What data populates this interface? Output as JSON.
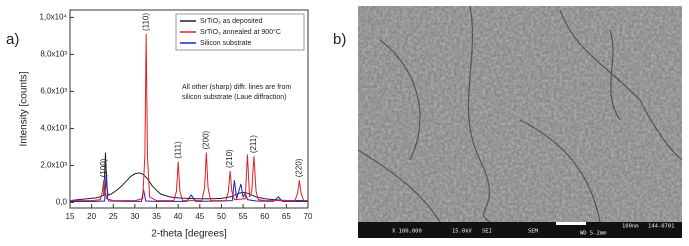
{
  "chart_data": {
    "type": "line",
    "xlabel": "2-theta [degrees]",
    "ylabel": "Intensity [counts]",
    "xlim": [
      15,
      70
    ],
    "xticks": [
      15,
      20,
      25,
      30,
      35,
      40,
      45,
      50,
      55,
      60,
      65,
      70
    ],
    "ylim": [
      -300,
      10400
    ],
    "yticks": [
      {
        "value": 0,
        "label": "0,0"
      },
      {
        "value": 2000,
        "label": "2,0x10³"
      },
      {
        "value": 4000,
        "label": "4,0x10³"
      },
      {
        "value": 6000,
        "label": "6,0x10³"
      },
      {
        "value": 8000,
        "label": "8,0x10³"
      },
      {
        "value": 10000,
        "label": "1,0x10⁴"
      }
    ],
    "legend": "upper right",
    "series": [
      {
        "name": "SrTiO₃ as deposited",
        "color": "#222222",
        "x": [
          15,
          17,
          19,
          21,
          22,
          22.8,
          23.2,
          23.5,
          23.8,
          24.5,
          26,
          27,
          28,
          29,
          30,
          31,
          32,
          33,
          34,
          35,
          36,
          38,
          40,
          42,
          44,
          46,
          48,
          50,
          52,
          53,
          54,
          55,
          56,
          57,
          58,
          60,
          62,
          64,
          66,
          68,
          70
        ],
        "values": [
          100,
          150,
          200,
          250,
          300,
          400,
          2700,
          800,
          400,
          450,
          700,
          900,
          1150,
          1400,
          1550,
          1600,
          1500,
          1250,
          900,
          650,
          450,
          300,
          250,
          220,
          200,
          200,
          200,
          220,
          300,
          400,
          500,
          550,
          500,
          400,
          300,
          200,
          150,
          120,
          100,
          100,
          100
        ]
      },
      {
        "name": "SrTiO₃ annealed at 900°C",
        "color": "#e02020",
        "x": [
          15,
          20,
          22,
          22.5,
          22.8,
          23.1,
          23.5,
          25,
          30,
          31.8,
          32.3,
          32.6,
          32.9,
          33.4,
          35,
          39,
          39.6,
          40,
          40.4,
          41,
          45.5,
          46.1,
          46.5,
          46.9,
          47.5,
          51,
          51.6,
          52,
          52.4,
          53,
          55.5,
          56,
          56.5,
          57,
          57.5,
          58,
          58.5,
          60,
          67,
          67.6,
          68,
          68.4,
          69,
          70
        ],
        "values": [
          100,
          100,
          150,
          600,
          1200,
          600,
          200,
          100,
          100,
          200,
          2500,
          9100,
          2500,
          300,
          100,
          100,
          600,
          2200,
          600,
          100,
          100,
          800,
          2700,
          800,
          100,
          100,
          600,
          1700,
          600,
          150,
          200,
          2600,
          300,
          600,
          2500,
          600,
          150,
          100,
          100,
          500,
          1200,
          500,
          100,
          100
        ]
      },
      {
        "name": "Silicon substrate",
        "color": "#2020cc",
        "x": [
          15,
          20,
          23,
          23.4,
          23.7,
          24,
          28,
          31.5,
          32,
          32.5,
          35,
          42,
          43,
          44,
          50,
          52.5,
          53,
          53.5,
          54,
          54.5,
          55,
          55.5,
          56,
          58,
          62,
          63.2,
          64,
          70
        ],
        "values": [
          50,
          50,
          80,
          1700,
          200,
          80,
          60,
          60,
          700,
          80,
          60,
          60,
          400,
          60,
          80,
          100,
          1200,
          200,
          600,
          1000,
          300,
          500,
          150,
          80,
          60,
          300,
          60,
          50
        ]
      }
    ],
    "annotation": [
      "All other (sharp) diffr. lines are from",
      "silicon substrate (Laue diffraction)"
    ],
    "peak_labels": [
      {
        "text": "(100)",
        "x": 22.8
      },
      {
        "text": "(110)",
        "x": 32.6
      },
      {
        "text": "(111)",
        "x": 40
      },
      {
        "text": "(200)",
        "x": 46.5
      },
      {
        "text": "(210)",
        "x": 52
      },
      {
        "text": "(211)",
        "x": 57.5
      },
      {
        "text": "(220)",
        "x": 68
      }
    ]
  },
  "panel_labels": [
    "a)",
    "b)"
  ],
  "sem": {
    "info": [
      "X 100,000",
      "15.0kV",
      "SEI",
      "SEM",
      "WD 5.2mm",
      "100nm",
      "144-0701"
    ]
  }
}
